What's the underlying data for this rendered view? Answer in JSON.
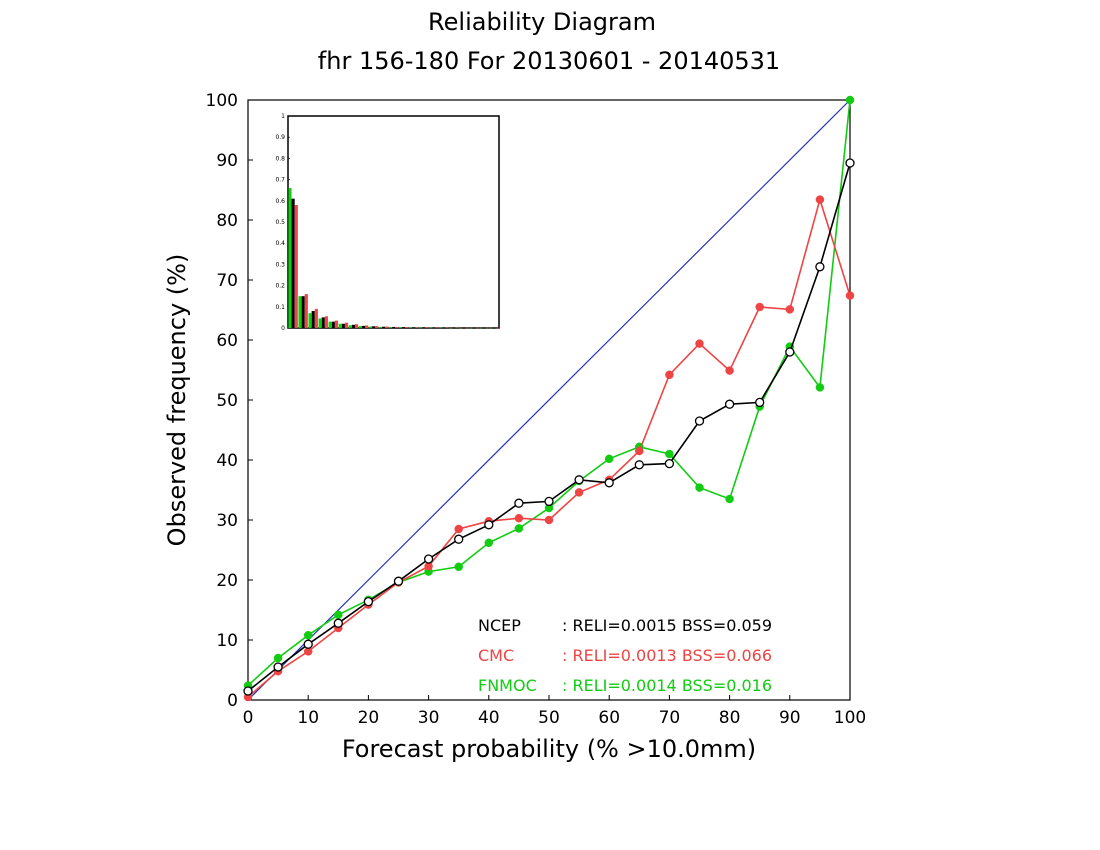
{
  "chart_data": {
    "type": "line",
    "title": "Reliability Diagram",
    "subtitle": "fhr 156-180 For 20130601 - 20140531",
    "xlabel": "Forecast probability (% >10.0mm)",
    "ylabel": "Observed frequency (%)",
    "xlim": [
      0,
      100
    ],
    "ylim": [
      0,
      100
    ],
    "x_ticks": [
      0,
      10,
      20,
      30,
      40,
      50,
      60,
      70,
      80,
      90,
      100
    ],
    "y_ticks": [
      0,
      10,
      20,
      30,
      40,
      50,
      60,
      70,
      80,
      90,
      100
    ],
    "grid": false,
    "diagonal_color": "#2233bb",
    "series": [
      {
        "name": "NCEP",
        "color": "#000000",
        "marker": "open-circle",
        "x": [
          0,
          5,
          10,
          15,
          20,
          25,
          30,
          35,
          40,
          45,
          50,
          55,
          60,
          65,
          70,
          75,
          80,
          85,
          90,
          95,
          100
        ],
        "y": [
          1.5,
          5.5,
          9.3,
          12.8,
          16.4,
          19.8,
          23.5,
          26.8,
          29.2,
          32.8,
          33.1,
          36.7,
          36.2,
          39.2,
          39.4,
          46.5,
          49.3,
          49.6,
          58.0,
          72.2,
          89.5
        ]
      },
      {
        "name": "CMC",
        "color": "#ee4444",
        "marker": "filled-circle",
        "x": [
          0,
          5,
          10,
          15,
          20,
          25,
          30,
          35,
          40,
          45,
          50,
          55,
          60,
          65,
          70,
          75,
          80,
          85,
          90,
          95,
          100
        ],
        "y": [
          0.5,
          4.8,
          8.1,
          12.0,
          15.9,
          19.6,
          22.3,
          28.5,
          29.8,
          30.3,
          30.0,
          34.6,
          36.7,
          41.5,
          54.2,
          59.4,
          54.9,
          65.5,
          65.1,
          83.4,
          67.4
        ]
      },
      {
        "name": "FNMOC",
        "color": "#11cc11",
        "marker": "filled-circle",
        "x": [
          0,
          5,
          10,
          15,
          20,
          25,
          30,
          35,
          40,
          45,
          50,
          55,
          60,
          65,
          70,
          75,
          80,
          85,
          90,
          95,
          100
        ],
        "y": [
          2.4,
          7.0,
          10.8,
          14.2,
          16.7,
          19.6,
          21.4,
          22.2,
          26.2,
          28.6,
          32.0,
          36.5,
          40.2,
          42.2,
          41.0,
          35.4,
          33.5,
          48.9,
          58.9,
          52.1,
          100.0
        ]
      }
    ],
    "legend": {
      "placement": "bottom-right",
      "entries": [
        {
          "name": "NCEP",
          "stats": ": RELI=0.0015  BSS=0.059",
          "color": "#000000"
        },
        {
          "name": "CMC",
          "stats": ": RELI=0.0013  BSS=0.066",
          "color": "#ee4444"
        },
        {
          "name": "FNMOC",
          "stats": ": RELI=0.0014  BSS=0.016",
          "color": "#11cc11"
        }
      ]
    },
    "inset": {
      "type": "bar",
      "placement": "top-left",
      "ylim": [
        0,
        1
      ],
      "y_ticks": [
        "0",
        "0.1",
        "0.2",
        "0.3",
        "0.4",
        "0.5",
        "0.6",
        "0.7",
        "0.8",
        "0.9",
        "1"
      ],
      "categories": [
        0,
        5,
        10,
        15,
        20,
        25,
        30,
        35,
        40,
        45,
        50,
        55,
        60,
        65,
        70,
        75,
        80,
        85,
        90,
        95,
        100
      ],
      "series": [
        {
          "name": "NCEP",
          "color": "#000000",
          "values": [
            0.61,
            0.15,
            0.08,
            0.05,
            0.03,
            0.02,
            0.015,
            0.01,
            0.008,
            0.006,
            0.005,
            0.004,
            0.003,
            0.003,
            0.002,
            0.002,
            0.002,
            0.001,
            0.001,
            0.001,
            0.001
          ]
        },
        {
          "name": "CMC",
          "color": "#ee4444",
          "values": [
            0.58,
            0.16,
            0.09,
            0.055,
            0.035,
            0.025,
            0.018,
            0.012,
            0.009,
            0.007,
            0.005,
            0.004,
            0.003,
            0.003,
            0.002,
            0.002,
            0.002,
            0.001,
            0.001,
            0.001,
            0.001
          ]
        },
        {
          "name": "FNMOC",
          "color": "#11cc11",
          "values": [
            0.66,
            0.15,
            0.07,
            0.045,
            0.03,
            0.02,
            0.013,
            0.009,
            0.007,
            0.005,
            0.004,
            0.003,
            0.003,
            0.002,
            0.002,
            0.002,
            0.001,
            0.001,
            0.001,
            0.001,
            0.001
          ]
        }
      ]
    }
  }
}
